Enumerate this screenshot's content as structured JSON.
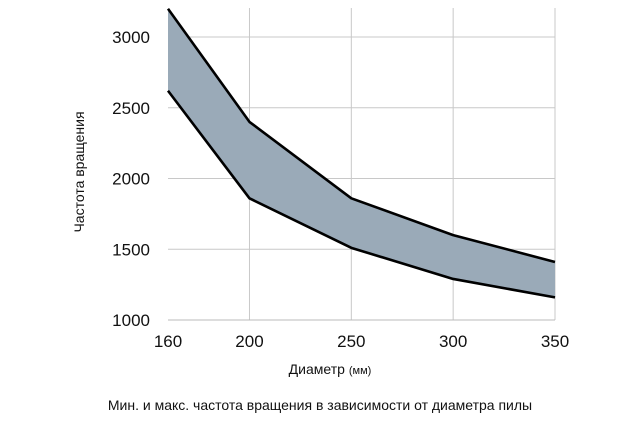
{
  "chart_data": {
    "type": "area",
    "title": "",
    "caption": "Мин. и макс. частота вращения в зависимости от диаметра пилы",
    "xlabel": "Диаметр",
    "xlabel_unit": "(мм)",
    "ylabel": "Частота вращения",
    "x": [
      160,
      200,
      250,
      300,
      350
    ],
    "xticks": [
      "160",
      "200",
      "250",
      "300",
      "350"
    ],
    "yticks": [
      "1000",
      "1500",
      "2000",
      "2500",
      "3000"
    ],
    "xlim": [
      160,
      350
    ],
    "ylim": [
      1000,
      3200
    ],
    "grid": true,
    "colors": {
      "fill": "#9aaab8",
      "line": "#000000",
      "grid": "#c8c8c8"
    },
    "series": [
      {
        "values": [
          3200,
          2400,
          1860,
          1600,
          1410
        ]
      },
      {
        "values": [
          2620,
          1860,
          1510,
          1290,
          1160
        ]
      }
    ]
  }
}
